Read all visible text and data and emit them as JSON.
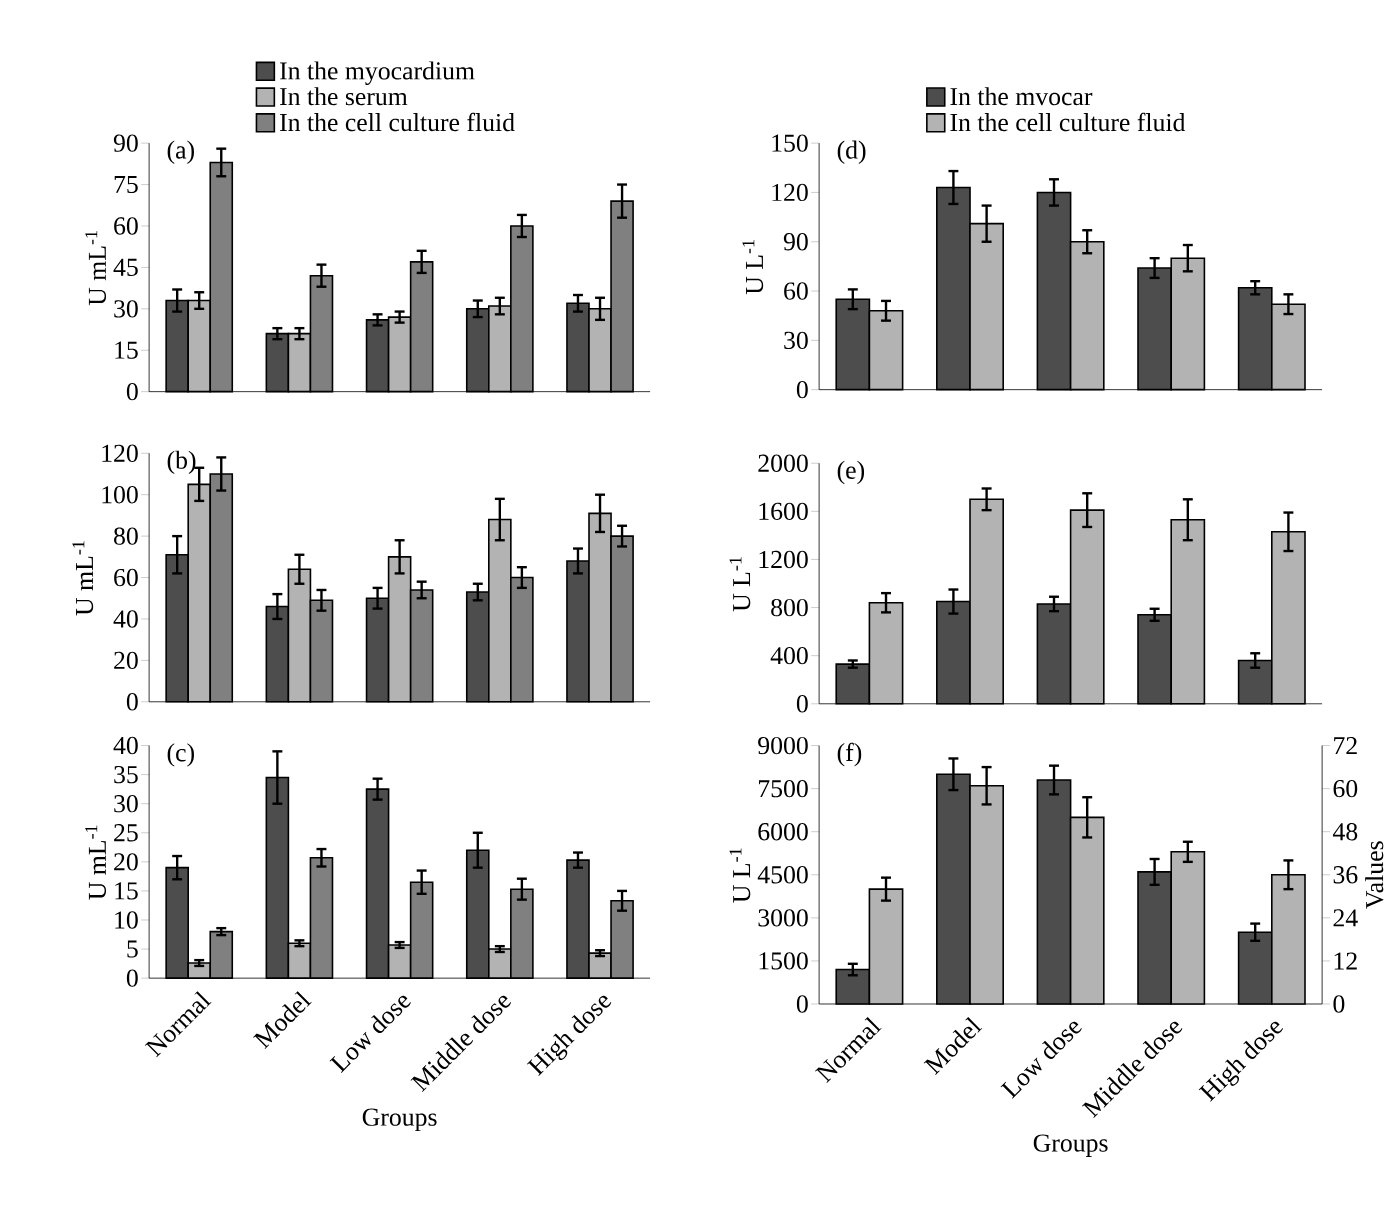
{
  "chart_data": [
    {
      "type": "bar",
      "ylabel": "U mL$^{-1}$",
      "annotations": [
        "(a)"
      ],
      "categories": [
        null,
        null,
        null,
        null,
        null
      ],
      "ylim": [
        0,
        90
      ],
      "yticks": [
        0,
        15,
        30,
        45,
        60,
        75,
        90
      ],
      "legend": "top",
      "tick_labels": "y",
      "series": [
        {
          "name": "In the myocardium",
          "color": "#4d4d4d",
          "values": [
            33,
            21,
            26,
            30,
            32
          ],
          "errors": [
            4,
            2,
            2,
            3,
            3
          ]
        },
        {
          "name": "In the serum",
          "color": "#b3b3b3",
          "values": [
            33,
            21,
            27,
            31,
            30
          ],
          "errors": [
            3,
            2,
            2,
            3,
            4
          ]
        },
        {
          "name": "In the cell culture fluid",
          "color": "#808080",
          "values": [
            83,
            42,
            47,
            60,
            69
          ],
          "errors": [
            5,
            4,
            4,
            4,
            6
          ]
        }
      ]
    },
    {
      "type": "bar",
      "ylabel": "U mL$^{-1}$",
      "annotations": [
        "(b)"
      ],
      "categories": [
        null,
        null,
        null,
        null,
        null
      ],
      "ylim": [
        0,
        120
      ],
      "yticks": [
        0,
        20,
        40,
        60,
        80,
        100,
        120
      ],
      "tick_labels": "y",
      "series": [
        {
          "color": "#4d4d4d",
          "values": [
            71,
            46,
            50,
            53,
            68
          ],
          "errors": [
            9,
            6,
            5,
            4,
            6
          ]
        },
        {
          "color": "#b3b3b3",
          "values": [
            105,
            64,
            70,
            88,
            91
          ],
          "errors": [
            8,
            7,
            8,
            10,
            9
          ]
        },
        {
          "color": "#808080",
          "values": [
            110,
            49,
            54,
            60,
            80
          ],
          "errors": [
            8,
            5,
            4,
            5,
            5
          ]
        }
      ]
    },
    {
      "type": "bar",
      "xlabel": "Groups",
      "ylabel": "U mL$^{-1}$",
      "annotations": [
        "(c)"
      ],
      "categories": [
        "Normal",
        "Model",
        "Low dose",
        "Middle dose",
        "High dose"
      ],
      "ylim": [
        0,
        40
      ],
      "yticks": [
        0,
        5,
        10,
        15,
        20,
        25,
        30,
        35,
        40
      ],
      "series": [
        {
          "color": "#4d4d4d",
          "values": [
            19,
            34.5,
            32.5,
            22,
            20.3
          ],
          "errors": [
            2,
            4.5,
            1.8,
            3,
            1.3
          ]
        },
        {
          "color": "#b3b3b3",
          "values": [
            2.6,
            6,
            5.7,
            5,
            4.3
          ],
          "errors": [
            0.5,
            0.5,
            0.5,
            0.5,
            0.5
          ]
        },
        {
          "color": "#808080",
          "values": [
            8,
            20.7,
            16.5,
            15.3,
            13.3
          ],
          "errors": [
            0.6,
            1.5,
            2,
            1.8,
            1.7
          ]
        }
      ]
    },
    {
      "type": "bar",
      "ylabel": "U L$^{-1}$",
      "annotations": [
        "(d)"
      ],
      "categories": [
        null,
        null,
        null,
        null,
        null
      ],
      "ylim": [
        0,
        150
      ],
      "yticks": [
        0,
        30,
        60,
        90,
        120,
        150
      ],
      "legend": "top",
      "tick_labels": "y",
      "series": [
        {
          "name": "In the mvocar",
          "color": "#4d4d4d",
          "values": [
            55,
            123,
            120,
            74,
            62
          ],
          "errors": [
            6,
            10,
            8,
            6,
            4
          ]
        },
        {
          "name": "In the cell culture fluid",
          "color": "#b3b3b3",
          "values": [
            48,
            101,
            90,
            80,
            52
          ],
          "errors": [
            6,
            11,
            7,
            8,
            6
          ]
        }
      ]
    },
    {
      "type": "bar",
      "ylabel": "U L$^{-1}$",
      "annotations": [
        "(e)"
      ],
      "categories": [
        null,
        null,
        null,
        null,
        null
      ],
      "ylim": [
        0,
        2000
      ],
      "yticks": [
        0,
        400,
        800,
        1200,
        1600,
        2000
      ],
      "tick_labels": "y",
      "series": [
        {
          "color": "#4d4d4d",
          "values": [
            330,
            850,
            830,
            740,
            360
          ],
          "errors": [
            30,
            100,
            60,
            50,
            60
          ]
        },
        {
          "color": "#b3b3b3",
          "values": [
            840,
            1700,
            1610,
            1530,
            1430
          ],
          "errors": [
            80,
            90,
            140,
            170,
            160
          ]
        }
      ]
    },
    {
      "type": "bar",
      "xlabel": "Groups",
      "ylabel": "U L$^{-1}$",
      "y2label": "Values",
      "annotations": [
        "(f)"
      ],
      "categories": [
        "Normal",
        "Model",
        "Low dose",
        "Middle dose",
        "High dose"
      ],
      "ylim": [
        0,
        9000
      ],
      "yticks": [
        0,
        1500,
        3000,
        4500,
        6000,
        7500,
        9000
      ],
      "y2lim": [
        0,
        72
      ],
      "y2ticks": [
        0,
        12,
        24,
        36,
        48,
        60,
        72
      ],
      "series": [
        {
          "color": "#4d4d4d",
          "values": [
            1200,
            8000,
            7800,
            4600,
            2500
          ],
          "errors": [
            200,
            550,
            500,
            450,
            300
          ]
        },
        {
          "color": "#b3b3b3",
          "values": [
            4000,
            7600,
            6500,
            5300,
            4500
          ],
          "errors": [
            400,
            650,
            700,
            350,
            500
          ]
        }
      ]
    }
  ]
}
